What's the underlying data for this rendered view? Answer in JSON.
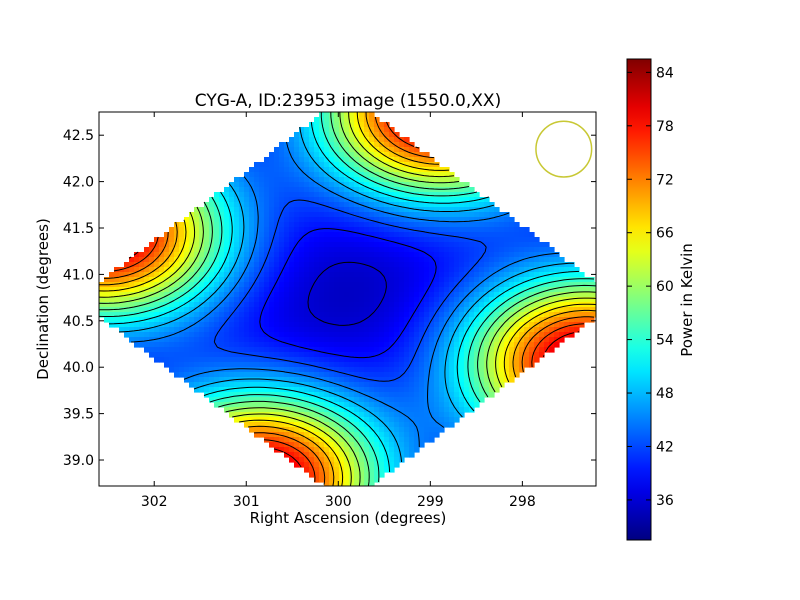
{
  "chart_data": {
    "type": "heatmap",
    "title": "CYG-A, ID:23953 image (1550.0,XX)",
    "xlabel": "Right Ascension (degrees)",
    "ylabel": "Declination (degrees)",
    "xlim": [
      302.6,
      297.2
    ],
    "ylim": [
      38.72,
      42.75
    ],
    "x_ticks": [
      302,
      301,
      300,
      299,
      298
    ],
    "x_tick_labels": [
      "302",
      "301",
      "300",
      "299",
      "298"
    ],
    "y_ticks": [
      39.0,
      39.5,
      40.0,
      40.5,
      41.0,
      41.5,
      42.0,
      42.5
    ],
    "y_tick_labels": [
      "39.0",
      "39.5",
      "40.0",
      "40.5",
      "41.0",
      "41.5",
      "42.0",
      "42.5"
    ],
    "colorbar": {
      "label": "Power in Kelvin",
      "range": [
        31.5,
        85.5
      ],
      "ticks": [
        36,
        42,
        48,
        54,
        60,
        66,
        72,
        78,
        84
      ],
      "tick_labels": [
        "36",
        "42",
        "48",
        "54",
        "60",
        "66",
        "72",
        "78",
        "84"
      ],
      "colormap": "jet"
    },
    "coverage": "diamond",
    "hotspots": [
      {
        "ra": 302.55,
        "dec": 41.45,
        "peak_kelvin": 84
      },
      {
        "ra": 298.9,
        "dec": 42.75,
        "peak_kelvin": 84
      },
      {
        "ra": 297.3,
        "dec": 40.05,
        "peak_kelvin": 84
      },
      {
        "ra": 300.85,
        "dec": 38.8,
        "peak_kelvin": 84
      }
    ],
    "background_kelvin": 33,
    "beam_marker": {
      "ra": 297.55,
      "dec": 42.35,
      "radius_deg": 0.3,
      "color": "#c8c834"
    },
    "contours": "black"
  }
}
